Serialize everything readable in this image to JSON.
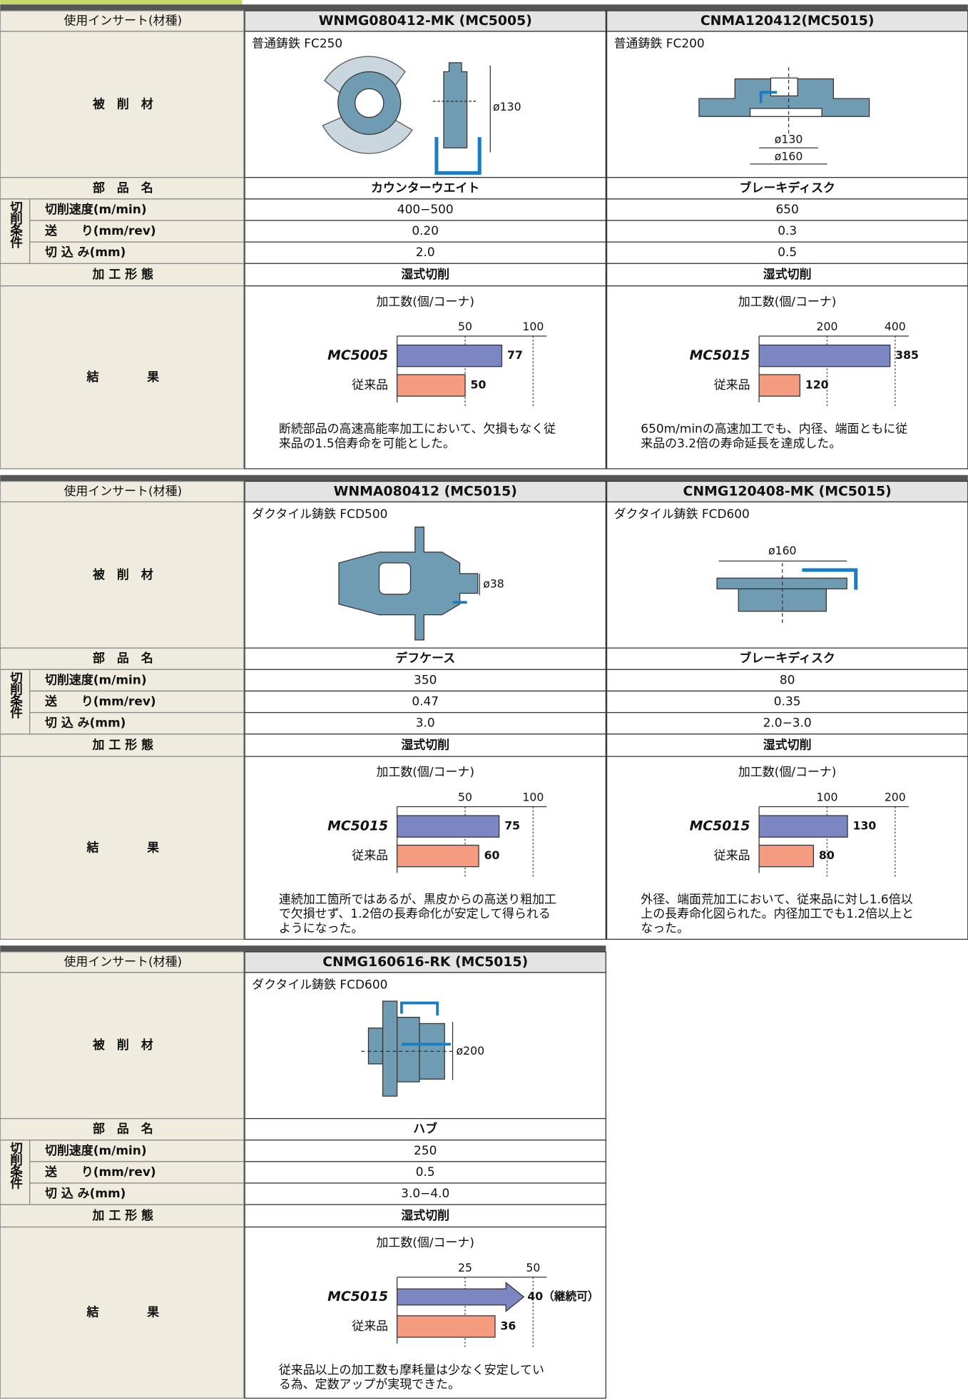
{
  "tables": [
    {
      "row_labels": {
        "insert": "使用インサート(材種)",
        "material": "被　削　材",
        "part": "部　品　名",
        "conditions": "切削条件",
        "speed": "切削速度(m/min)",
        "feed": "送　　り(mm/rev)",
        "depth": "切 込 み(mm)",
        "process": "加 工 形 態",
        "result": "結　　　　果"
      },
      "columns": [
        {
          "insert": "WNMG080412-MK (MC5005)",
          "material": "普通鋳鉄 FC250",
          "diagram_labels": [
            "ø130"
          ],
          "part": "カウンターウエイト",
          "speed": "400−500",
          "feed": "0.20",
          "depth": "2.0",
          "process": "湿式切削",
          "chart": {
            "type": "bar",
            "orientation": "horizontal",
            "title": "加工数(個/コーナ)",
            "categories": [
              "MC5005",
              "従来品"
            ],
            "values": [
              77,
              50
            ],
            "colors": [
              "#7c86c3",
              "#f59b7f"
            ],
            "xlim": [
              0,
              110
            ],
            "xticks": [
              50,
              100
            ],
            "grid": true
          },
          "note": [
            "断続部品の高速高能率加工において、欠損もなく従",
            "来品の1.5倍寿命を可能とした。"
          ]
        },
        {
          "insert": "CNMA120412(MC5015)",
          "material": "普通鋳鉄 FC200",
          "diagram_labels": [
            "ø130",
            "ø160"
          ],
          "part": "ブレーキディスク",
          "speed": "650",
          "feed": "0.3",
          "depth": "0.5",
          "process": "湿式切削",
          "chart": {
            "type": "bar",
            "orientation": "horizontal",
            "title": "加工数(個/コーナ)",
            "categories": [
              "MC5015",
              "従来品"
            ],
            "values": [
              385,
              120
            ],
            "colors": [
              "#7c86c3",
              "#f59b7f"
            ],
            "xlim": [
              0,
              440
            ],
            "xticks": [
              200,
              400
            ],
            "grid": true
          },
          "note": [
            "650m/minの高速加工でも、内径、端面ともに従",
            "来品の3.2倍の寿命延長を達成した。"
          ]
        }
      ]
    },
    {
      "row_labels": {
        "insert": "使用インサート(材種)",
        "material": "被　削　材",
        "part": "部　品　名",
        "conditions": "切削条件",
        "speed": "切削速度(m/min)",
        "feed": "送　　り(mm/rev)",
        "depth": "切 込 み(mm)",
        "process": "加 工 形 態",
        "result": "結　　　　果"
      },
      "columns": [
        {
          "insert": "WNMA080412 (MC5015)",
          "material": "ダクタイル鋳鉄 FCD500",
          "diagram_labels": [
            "ø38"
          ],
          "part": "デフケース",
          "speed": "350",
          "feed": "0.47",
          "depth": "3.0",
          "process": "湿式切削",
          "chart": {
            "type": "bar",
            "orientation": "horizontal",
            "title": "加工数(個/コーナ)",
            "categories": [
              "MC5015",
              "従来品"
            ],
            "values": [
              75,
              60
            ],
            "colors": [
              "#7c86c3",
              "#f59b7f"
            ],
            "xlim": [
              0,
              110
            ],
            "xticks": [
              50,
              100
            ],
            "grid": true
          },
          "note": [
            "連続加工箇所ではあるが、黒皮からの高送り粗加工",
            "で欠損せず、1.2倍の長寿命化が安定して得られる",
            "ようになった。"
          ]
        },
        {
          "insert": "CNMG120408-MK (MC5015)",
          "material": "ダクタイル鋳鉄 FCD600",
          "diagram_labels": [
            "ø160"
          ],
          "part": "ブレーキディスク",
          "speed": "80",
          "feed": "0.35",
          "depth": "2.0−3.0",
          "process": "湿式切削",
          "chart": {
            "type": "bar",
            "orientation": "horizontal",
            "title": "加工数(個/コーナ)",
            "categories": [
              "MC5015",
              "従来品"
            ],
            "values": [
              130,
              80
            ],
            "colors": [
              "#7c86c3",
              "#f59b7f"
            ],
            "xlim": [
              0,
              220
            ],
            "xticks": [
              100,
              200
            ],
            "grid": true
          },
          "note": [
            "外径、端面荒加工において、従来品に対し1.6倍以",
            "上の長寿命化図られた。内径加工でも1.2倍以上と",
            "なった。"
          ]
        }
      ]
    },
    {
      "row_labels": {
        "insert": "使用インサート(材種)",
        "material": "被　削　材",
        "part": "部　品　名",
        "conditions": "切削条件",
        "speed": "切削速度(m/min)",
        "feed": "送　　り(mm/rev)",
        "depth": "切 込 み(mm)",
        "process": "加 工 形 態",
        "result": "結　　　　果"
      },
      "columns": [
        {
          "insert": "CNMG160616-RK (MC5015)",
          "material": "ダクタイル鋳鉄 FCD600",
          "diagram_labels": [
            "ø200"
          ],
          "part": "ハブ",
          "speed": "250",
          "feed": "0.5",
          "depth": "3.0−4.0",
          "process": "湿式切削",
          "chart": {
            "type": "bar",
            "orientation": "horizontal",
            "title": "加工数(個/コーナ)",
            "categories": [
              "MC5015",
              "従来品"
            ],
            "values": [
              40,
              36
            ],
            "value_labels": [
              "40（継続可）",
              "36"
            ],
            "arrow_first": true,
            "colors": [
              "#7c86c3",
              "#f59b7f"
            ],
            "xlim": [
              0,
              55
            ],
            "xticks": [
              25,
              50
            ],
            "grid": true
          },
          "note": [
            "従来品以上の加工数も摩耗量は少なく安定してい",
            "る為、定数アップが実現できた。"
          ]
        }
      ]
    }
  ]
}
